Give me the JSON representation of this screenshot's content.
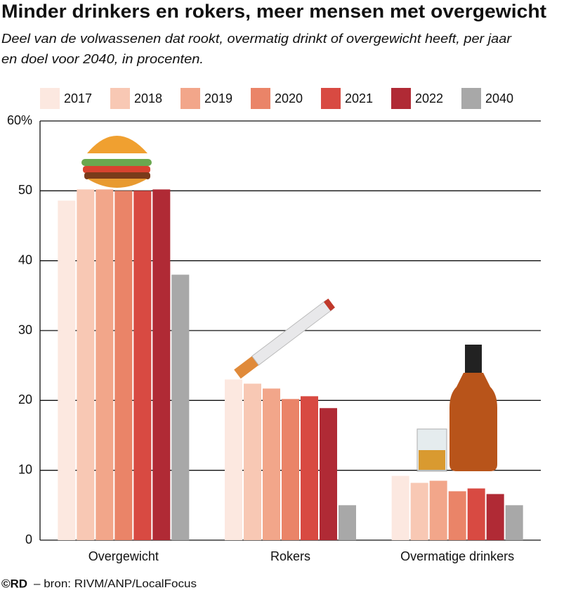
{
  "chart_data": {
    "type": "bar",
    "title": "Minder drinkers en rokers, meer mensen met overgewicht",
    "subtitle": [
      "Deel van de volwassenen dat rookt, overmatig drinkt of overgewicht heeft, per jaar",
      "en doel voor 2040, in procenten."
    ],
    "categories": [
      "Overgewicht",
      "Rokers",
      "Overmatige drinkers"
    ],
    "series": [
      {
        "name": "2017",
        "color": "#fce8e0",
        "values": [
          48.6,
          23.0,
          9.2
        ]
      },
      {
        "name": "2018",
        "color": "#f8c8b4",
        "values": [
          50.2,
          22.4,
          8.2
        ]
      },
      {
        "name": "2019",
        "color": "#f2a68a",
        "values": [
          50.2,
          21.7,
          8.5
        ]
      },
      {
        "name": "2020",
        "color": "#ea8468",
        "values": [
          50.0,
          20.2,
          7.0
        ]
      },
      {
        "name": "2021",
        "color": "#d84a42",
        "values": [
          50.0,
          20.6,
          7.4
        ]
      },
      {
        "name": "2022",
        "color": "#b02a35",
        "values": [
          50.2,
          18.9,
          6.6
        ]
      },
      {
        "name": "2040",
        "color": "#a8a8a8",
        "values": [
          38.0,
          5.0,
          5.0
        ]
      }
    ],
    "ylim": [
      0,
      60
    ],
    "yticks": [
      0,
      10,
      20,
      30,
      40,
      50,
      {
        "value": 60,
        "label": "60%"
      }
    ],
    "grid": true,
    "credit": "©RD",
    "source": "– bron: RIVM/ANP/LocalFocus"
  }
}
